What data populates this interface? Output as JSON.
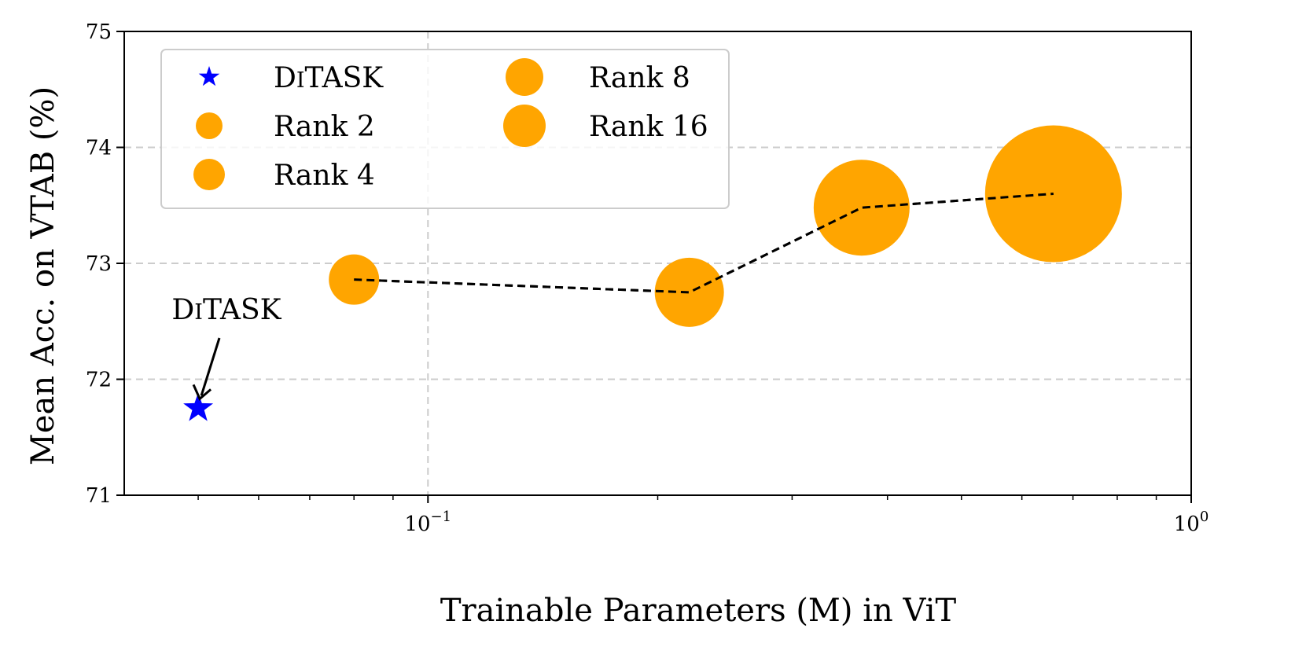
{
  "chart_data": {
    "type": "scatter",
    "xlabel": "Trainable Parameters (M) in ViT",
    "ylabel": "Mean Acc. on VTAB (%)",
    "xscale": "log",
    "xlim": [
      0.04,
      1.0
    ],
    "ylim": [
      71,
      75
    ],
    "yticks": [
      71,
      72,
      73,
      74,
      75
    ],
    "xticks": [
      {
        "value": 0.1,
        "base": "10",
        "exp": "−1"
      },
      {
        "value": 1.0,
        "base": "10",
        "exp": "0"
      }
    ],
    "grid": true,
    "ditask": {
      "name": "DiTASK",
      "x": 0.05,
      "y": 71.75,
      "color": "#0000ff",
      "marker": "star"
    },
    "series": [
      {
        "name": "Rank 2",
        "x": 0.08,
        "y": 72.86,
        "size": 1
      },
      {
        "name": "Rank 4",
        "x": 0.22,
        "y": 72.75,
        "size": 2
      },
      {
        "name": "Rank 8",
        "x": 0.37,
        "y": 73.48,
        "size": 3
      },
      {
        "name": "Rank 16",
        "x": 0.66,
        "y": 73.6,
        "size": 5
      }
    ],
    "series_color": "#ffa500",
    "line_style": "dashed",
    "annotation": {
      "text": "DiTASK",
      "points_to": "DiTASK"
    },
    "legend": {
      "placement": "top-left",
      "entries": [
        {
          "label": "DiTASK",
          "marker": "star",
          "small_caps": true
        },
        {
          "label": "Rank 2",
          "marker": "circle"
        },
        {
          "label": "Rank 4",
          "marker": "circle"
        },
        {
          "label": "Rank 8",
          "marker": "circle"
        },
        {
          "label": "Rank 16",
          "marker": "circle"
        }
      ]
    }
  }
}
